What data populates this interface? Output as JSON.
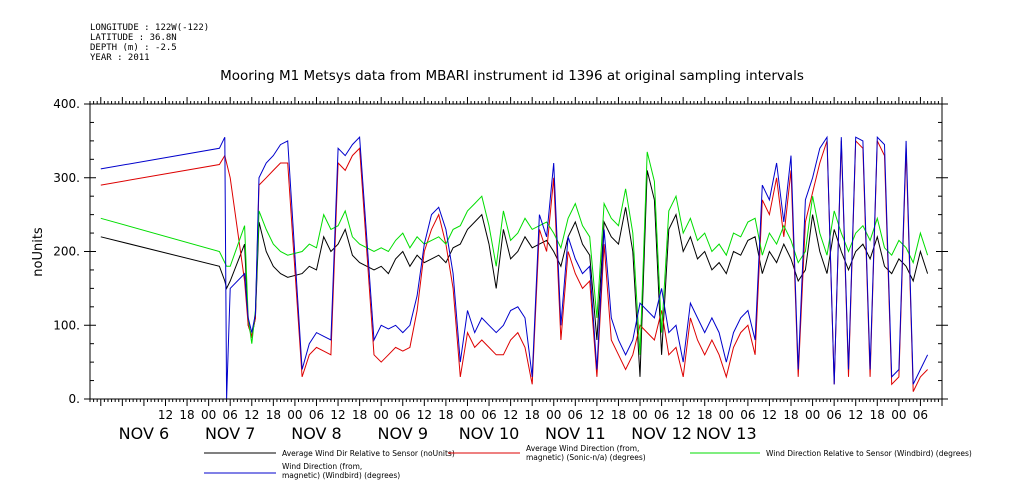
{
  "metadata": [
    "LONGITUDE : 122W(-122)",
    "LATITUDE : 36.8N",
    "DEPTH (m) : -2.5",
    "YEAR : 2011"
  ],
  "chart_data": {
    "type": "line",
    "title": "Mooring M1 Metsys data from MBARI instrument id 1396 at original sampling intervals",
    "ylabel": "noUnits",
    "xlabel": "",
    "ylim": [
      0,
      400
    ],
    "yticks": [
      0,
      100,
      200,
      300,
      400
    ],
    "ytick_labels": [
      "0.",
      "100.",
      "200.",
      "300.",
      "400."
    ],
    "x_unit": "hours since 2011-11-06 00:00",
    "xlim": [
      -9,
      228
    ],
    "hour_ticks": [
      {
        "x": 12,
        "label": "12"
      },
      {
        "x": 18,
        "label": "18"
      },
      {
        "x": 24,
        "label": "00"
      },
      {
        "x": 30,
        "label": "06"
      },
      {
        "x": 36,
        "label": "12"
      },
      {
        "x": 42,
        "label": "18"
      },
      {
        "x": 48,
        "label": "00"
      },
      {
        "x": 54,
        "label": "06"
      },
      {
        "x": 60,
        "label": "12"
      },
      {
        "x": 66,
        "label": "18"
      },
      {
        "x": 72,
        "label": "00"
      },
      {
        "x": 78,
        "label": "06"
      },
      {
        "x": 84,
        "label": "12"
      },
      {
        "x": 90,
        "label": "18"
      },
      {
        "x": 96,
        "label": "00"
      },
      {
        "x": 102,
        "label": "06"
      },
      {
        "x": 108,
        "label": "12"
      },
      {
        "x": 114,
        "label": "18"
      },
      {
        "x": 120,
        "label": "00"
      },
      {
        "x": 126,
        "label": "06"
      },
      {
        "x": 132,
        "label": "12"
      },
      {
        "x": 138,
        "label": "18"
      },
      {
        "x": 144,
        "label": "00"
      },
      {
        "x": 150,
        "label": "06"
      },
      {
        "x": 156,
        "label": "12"
      },
      {
        "x": 162,
        "label": "18"
      },
      {
        "x": 168,
        "label": "00"
      },
      {
        "x": 174,
        "label": "06"
      },
      {
        "x": 180,
        "label": "12"
      },
      {
        "x": 186,
        "label": "18"
      },
      {
        "x": 192,
        "label": "00"
      },
      {
        "x": 198,
        "label": "06"
      },
      {
        "x": 204,
        "label": "12"
      },
      {
        "x": 210,
        "label": "18"
      },
      {
        "x": 216,
        "label": "00"
      },
      {
        "x": 222,
        "label": "06"
      }
    ],
    "day_labels": [
      {
        "x": 6,
        "label": "NOV  6"
      },
      {
        "x": 30,
        "label": "NOV  7"
      },
      {
        "x": 54,
        "label": "NOV  8"
      },
      {
        "x": 78,
        "label": "NOV  9"
      },
      {
        "x": 102,
        "label": "NOV 10"
      },
      {
        "x": 126,
        "label": "NOV 11"
      },
      {
        "x": 150,
        "label": "NOV 12"
      },
      {
        "x": 168,
        "label": "NOV 13"
      }
    ],
    "series": [
      {
        "name": "Average Wind Dir Relative to Sensor (noUnits)",
        "color": "#000000",
        "x": [
          -6,
          27,
          28.5,
          29,
          30,
          34,
          35,
          36,
          37,
          38,
          40,
          42,
          44,
          46,
          50,
          52,
          54,
          56,
          58,
          60,
          62,
          64,
          66,
          70,
          72,
          74,
          76,
          78,
          80,
          82,
          84,
          86,
          88,
          90,
          92,
          94,
          96,
          98,
          100,
          102,
          104,
          106,
          108,
          110,
          112,
          114,
          116,
          118,
          120,
          122,
          124,
          126,
          128,
          130,
          132,
          134,
          136,
          138,
          140,
          142,
          144,
          146,
          148,
          150,
          152,
          154,
          156,
          158,
          160,
          162,
          164,
          166,
          168,
          170,
          172,
          174,
          176,
          178,
          180,
          182,
          184,
          186,
          188,
          190,
          192,
          194,
          196,
          198,
          200,
          202,
          204,
          206,
          208,
          210,
          212,
          214,
          216,
          218,
          220,
          222,
          224
        ],
        "y": [
          220,
          180,
          160,
          150,
          160,
          210,
          100,
          85,
          110,
          240,
          200,
          180,
          170,
          165,
          170,
          180,
          175,
          220,
          200,
          210,
          230,
          195,
          185,
          175,
          180,
          170,
          190,
          200,
          180,
          195,
          185,
          190,
          195,
          185,
          205,
          210,
          230,
          240,
          250,
          210,
          150,
          230,
          190,
          200,
          220,
          205,
          210,
          215,
          200,
          180,
          220,
          240,
          210,
          195,
          80,
          240,
          220,
          210,
          260,
          200,
          30,
          310,
          270,
          60,
          230,
          250,
          200,
          220,
          190,
          200,
          175,
          185,
          170,
          200,
          195,
          215,
          220,
          170,
          200,
          185,
          210,
          190,
          160,
          175,
          250,
          200,
          170,
          230,
          200,
          175,
          200,
          210,
          190,
          220,
          180,
          170,
          190,
          180,
          160,
          200,
          170
        ]
      },
      {
        "name": "Average Wind Direction (from, magnetic) (Sonic-n/a) (degrees)",
        "color": "#dd0000",
        "x": [
          -6,
          27,
          28.5,
          29,
          30,
          34,
          35,
          36,
          37,
          38,
          40,
          42,
          44,
          46,
          50,
          52,
          54,
          56,
          58,
          60,
          62,
          64,
          66,
          70,
          72,
          74,
          76,
          78,
          80,
          82,
          84,
          86,
          88,
          90,
          92,
          94,
          96,
          98,
          100,
          102,
          104,
          106,
          108,
          110,
          112,
          114,
          116,
          118,
          120,
          122,
          124,
          126,
          128,
          130,
          132,
          134,
          136,
          138,
          140,
          142,
          144,
          146,
          148,
          150,
          152,
          154,
          156,
          158,
          160,
          162,
          164,
          166,
          168,
          170,
          172,
          174,
          176,
          178,
          180,
          182,
          184,
          186,
          188,
          190,
          192,
          194,
          196,
          198,
          200,
          202,
          204,
          206,
          208,
          210,
          212,
          214,
          216,
          218,
          220,
          222,
          224
        ],
        "y": [
          290,
          318,
          330,
          320,
          300,
          160,
          100,
          85,
          110,
          290,
          300,
          310,
          320,
          320,
          30,
          60,
          70,
          65,
          60,
          320,
          310,
          330,
          340,
          60,
          50,
          60,
          70,
          65,
          70,
          120,
          200,
          230,
          250,
          210,
          150,
          30,
          90,
          70,
          80,
          70,
          60,
          60,
          80,
          90,
          70,
          20,
          230,
          200,
          300,
          80,
          200,
          170,
          150,
          160,
          30,
          210,
          80,
          60,
          40,
          60,
          100,
          90,
          80,
          120,
          60,
          70,
          30,
          110,
          80,
          60,
          80,
          60,
          30,
          70,
          90,
          100,
          60,
          270,
          250,
          300,
          220,
          310,
          30,
          240,
          280,
          320,
          350,
          20,
          350,
          30,
          350,
          340,
          30,
          350,
          330,
          20,
          30,
          340,
          10,
          30,
          40
        ]
      },
      {
        "name": "Wind Direction Relative to Sensor (Windbird) (degrees)",
        "color": "#00dd00",
        "x": [
          -6,
          27,
          28.5,
          29,
          30,
          34,
          35,
          36,
          37,
          38,
          40,
          42,
          44,
          46,
          50,
          52,
          54,
          56,
          58,
          60,
          62,
          64,
          66,
          70,
          72,
          74,
          76,
          78,
          80,
          82,
          84,
          86,
          88,
          90,
          92,
          94,
          96,
          98,
          100,
          102,
          104,
          106,
          108,
          110,
          112,
          114,
          116,
          118,
          120,
          122,
          124,
          126,
          128,
          130,
          132,
          134,
          136,
          138,
          140,
          142,
          144,
          146,
          148,
          150,
          152,
          154,
          156,
          158,
          160,
          162,
          164,
          166,
          168,
          170,
          172,
          174,
          176,
          178,
          180,
          182,
          184,
          186,
          188,
          190,
          192,
          194,
          196,
          198,
          200,
          202,
          204,
          206,
          208,
          210,
          212,
          214,
          216,
          218,
          220,
          222,
          224
        ],
        "y": [
          245,
          200,
          185,
          180,
          180,
          235,
          110,
          75,
          120,
          255,
          230,
          210,
          200,
          195,
          200,
          210,
          205,
          250,
          230,
          235,
          255,
          220,
          210,
          200,
          205,
          200,
          215,
          225,
          205,
          220,
          210,
          215,
          220,
          210,
          230,
          235,
          255,
          265,
          275,
          235,
          180,
          255,
          215,
          225,
          245,
          230,
          235,
          240,
          225,
          205,
          245,
          265,
          235,
          220,
          110,
          265,
          245,
          235,
          285,
          225,
          60,
          335,
          295,
          90,
          255,
          275,
          225,
          245,
          215,
          225,
          200,
          210,
          195,
          225,
          220,
          240,
          245,
          195,
          225,
          210,
          235,
          215,
          185,
          200,
          275,
          225,
          195,
          255,
          225,
          200,
          225,
          235,
          215,
          245,
          205,
          195,
          215,
          205,
          185,
          225,
          195
        ]
      },
      {
        "name": "Wind Direction (from, magnetic) (Windbird) (degrees)",
        "color": "#0000cc",
        "x": [
          -6,
          27,
          28.5,
          29,
          30,
          34,
          35,
          36,
          37,
          38,
          40,
          42,
          44,
          46,
          50,
          52,
          54,
          56,
          58,
          60,
          62,
          64,
          66,
          70,
          72,
          74,
          76,
          78,
          80,
          82,
          84,
          86,
          88,
          90,
          92,
          94,
          96,
          98,
          100,
          102,
          104,
          106,
          108,
          110,
          112,
          114,
          116,
          118,
          120,
          122,
          124,
          126,
          128,
          130,
          132,
          134,
          136,
          138,
          140,
          142,
          144,
          146,
          148,
          150,
          152,
          154,
          156,
          158,
          160,
          162,
          164,
          166,
          168,
          170,
          172,
          174,
          176,
          178,
          180,
          182,
          184,
          186,
          188,
          190,
          192,
          194,
          196,
          198,
          200,
          202,
          204,
          206,
          208,
          210,
          212,
          214,
          216,
          218,
          220,
          222,
          224
        ],
        "y": [
          312,
          340,
          355,
          0,
          150,
          170,
          110,
          90,
          115,
          300,
          320,
          330,
          345,
          350,
          40,
          75,
          90,
          85,
          80,
          340,
          330,
          345,
          355,
          80,
          100,
          95,
          100,
          90,
          100,
          140,
          210,
          250,
          260,
          230,
          170,
          50,
          120,
          90,
          110,
          100,
          90,
          100,
          120,
          125,
          110,
          30,
          250,
          220,
          320,
          100,
          220,
          190,
          170,
          180,
          40,
          230,
          110,
          80,
          60,
          80,
          130,
          120,
          110,
          150,
          90,
          100,
          50,
          130,
          110,
          90,
          110,
          90,
          50,
          90,
          110,
          120,
          80,
          290,
          270,
          320,
          240,
          330,
          40,
          270,
          300,
          340,
          355,
          20,
          355,
          40,
          355,
          350,
          40,
          355,
          345,
          30,
          40,
          350,
          20,
          40,
          60
        ]
      }
    ],
    "legend_position": "bottom",
    "grid": false
  }
}
